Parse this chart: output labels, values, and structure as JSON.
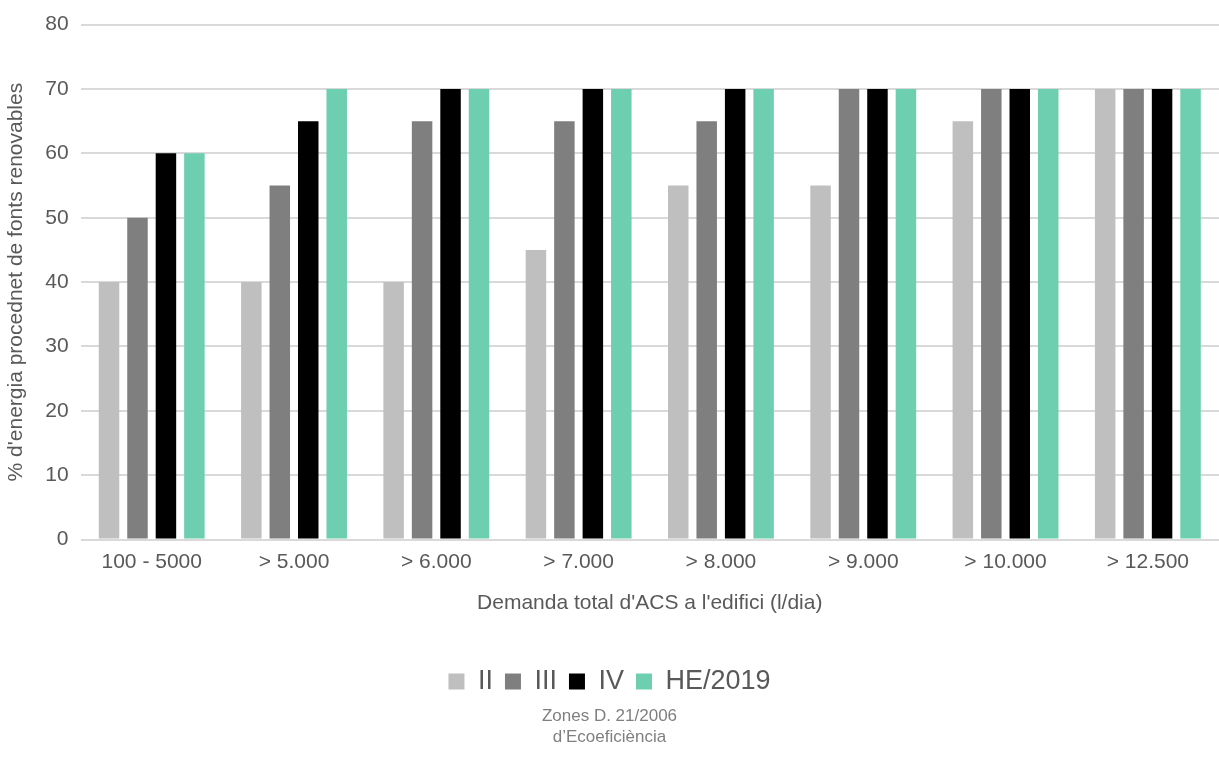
{
  "chart_data": {
    "type": "bar",
    "xlabel": "Demanda total d'ACS a l'edifici (l/dia)",
    "ylabel": "% d'energia procednet de fonts renovables",
    "categories": [
      "100 - 5000",
      "> 5.000",
      "> 6.000",
      "> 7.000",
      "> 8.000",
      "> 9.000",
      "> 10.000",
      "> 12.500"
    ],
    "series": [
      {
        "name": "II",
        "color": "#bfbfbf",
        "values": [
          40,
          40,
          40,
          45,
          55,
          55,
          65,
          70
        ]
      },
      {
        "name": "III",
        "color": "#7f7f7f",
        "values": [
          50,
          55,
          65,
          65,
          65,
          70,
          70,
          70
        ]
      },
      {
        "name": "IV",
        "color": "#000000",
        "values": [
          60,
          65,
          70,
          70,
          70,
          70,
          70,
          70
        ]
      },
      {
        "name": "HE/2019",
        "color": "#6dcfb0",
        "values": [
          60,
          70,
          70,
          70,
          70,
          70,
          70,
          70
        ]
      }
    ],
    "ylim": [
      0,
      80
    ],
    "yticks": [
      0,
      10,
      20,
      30,
      40,
      50,
      60,
      70,
      80
    ],
    "grid": "y",
    "legend": "bottom",
    "annotations": [
      "Zones D. 21/2006",
      "d’Ecoeficiència"
    ]
  }
}
